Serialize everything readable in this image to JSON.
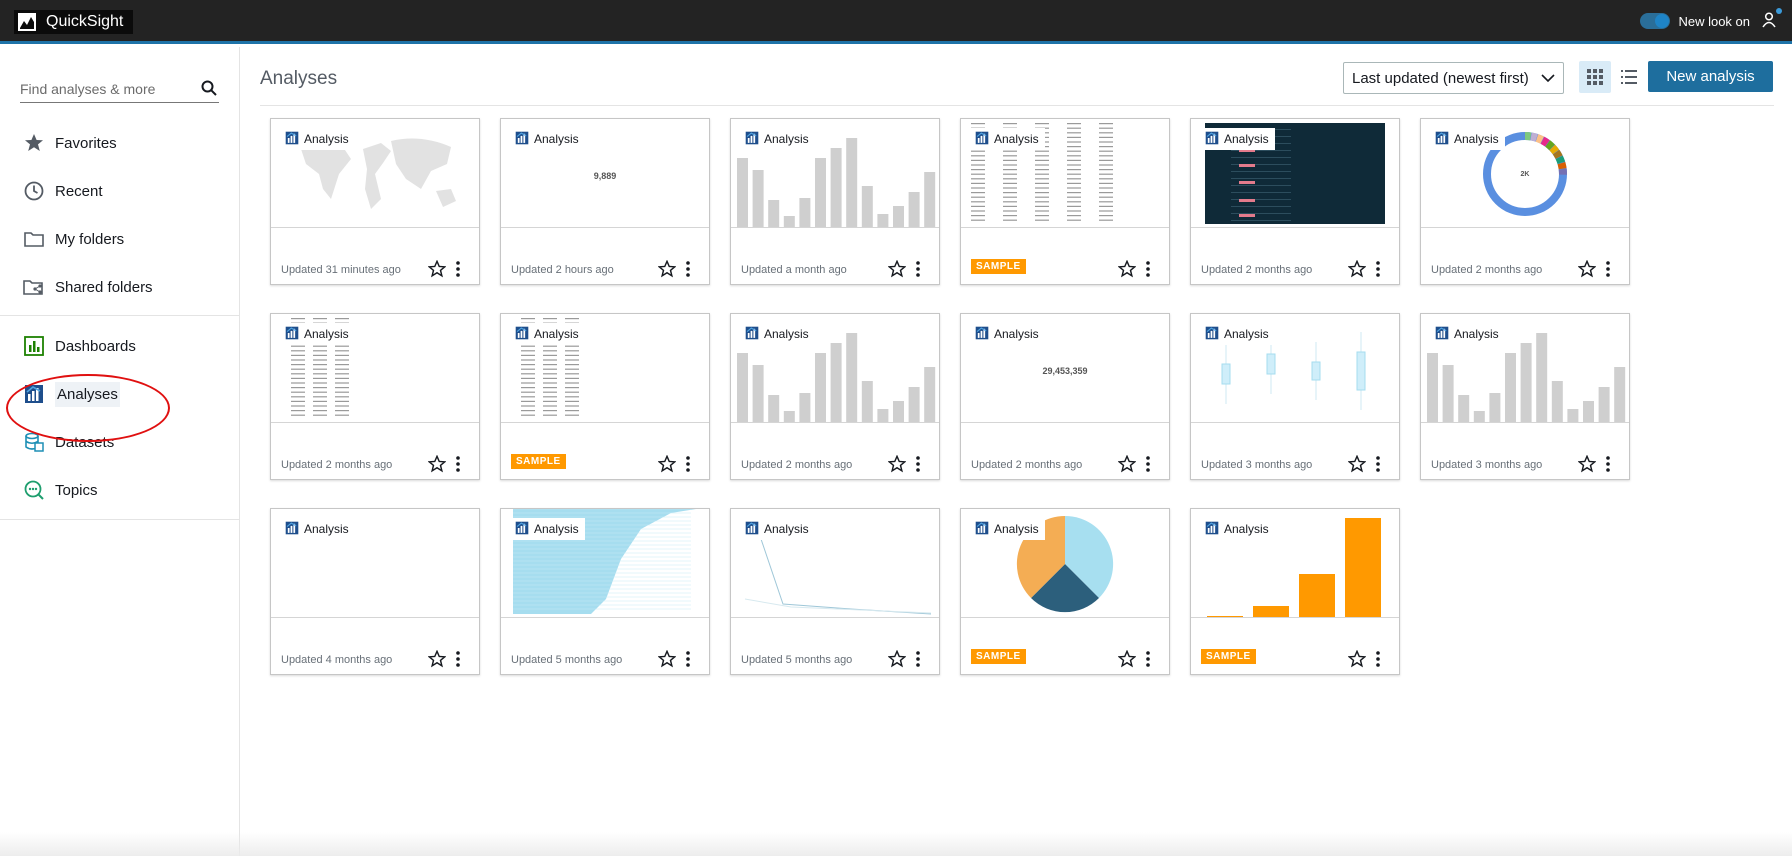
{
  "app": {
    "title": "QuickSight",
    "new_look_label": "New look on"
  },
  "sidebar": {
    "search_placeholder": "Find analyses & more",
    "items": [
      {
        "id": "favorites",
        "label": "Favorites",
        "icon": "star-icon"
      },
      {
        "id": "recent",
        "label": "Recent",
        "icon": "clock-icon"
      },
      {
        "id": "my-folders",
        "label": "My folders",
        "icon": "folder-icon"
      },
      {
        "id": "shared-folders",
        "label": "Shared folders",
        "icon": "shared-folder-icon"
      },
      {
        "id": "dashboards",
        "label": "Dashboards",
        "icon": "dashboard-icon"
      },
      {
        "id": "analyses",
        "label": "Analyses",
        "icon": "analysis-icon",
        "active": true
      },
      {
        "id": "datasets",
        "label": "Datasets",
        "icon": "dataset-icon"
      },
      {
        "id": "topics",
        "label": "Topics",
        "icon": "topics-icon"
      }
    ]
  },
  "main": {
    "title": "Analyses",
    "sort_selected": "Last updated (newest first)",
    "new_button": "New analysis",
    "cards": [
      {
        "type_label": "Analysis",
        "updated": "Updated 31 minutes ago",
        "thumb": "map"
      },
      {
        "type_label": "Analysis",
        "updated": "Updated 2 hours ago",
        "thumb": "kpi",
        "kpi_value": "9,889"
      },
      {
        "type_label": "Analysis",
        "updated": "Updated a month ago",
        "thumb": "bars-gray"
      },
      {
        "type_label": "Analysis",
        "badge": "SAMPLE",
        "thumb": "table"
      },
      {
        "type_label": "Analysis",
        "updated": "Updated 2 months ago",
        "thumb": "dark-table"
      },
      {
        "type_label": "Analysis",
        "updated": "Updated 2 months ago",
        "thumb": "donut",
        "kpi_value": "2K"
      },
      {
        "type_label": "Analysis",
        "updated": "Updated 2 months ago",
        "thumb": "table-small"
      },
      {
        "type_label": "Analysis",
        "badge": "SAMPLE",
        "thumb": "table-small2"
      },
      {
        "type_label": "Analysis",
        "updated": "Updated 2 months ago",
        "thumb": "bars-gray"
      },
      {
        "type_label": "Analysis",
        "updated": "Updated 2 months ago",
        "thumb": "kpi",
        "kpi_value": "29,453,359"
      },
      {
        "type_label": "Analysis",
        "updated": "Updated 3 months ago",
        "thumb": "boxplot"
      },
      {
        "type_label": "Analysis",
        "updated": "Updated 3 months ago",
        "thumb": "bars-gray"
      },
      {
        "type_label": "Analysis",
        "updated": "Updated 4 months ago",
        "thumb": "blank"
      },
      {
        "type_label": "Analysis",
        "updated": "Updated 5 months ago",
        "thumb": "area-blue"
      },
      {
        "type_label": "Analysis",
        "updated": "Updated 5 months ago",
        "thumb": "line"
      },
      {
        "type_label": "Analysis",
        "badge": "SAMPLE",
        "thumb": "pie"
      },
      {
        "type_label": "Analysis",
        "badge": "SAMPLE",
        "thumb": "bars-orange"
      }
    ]
  },
  "colors": {
    "topbar": "#232323",
    "accent": "#1e6e9e",
    "sample": "#ff9900",
    "annotation": "#e01010"
  }
}
